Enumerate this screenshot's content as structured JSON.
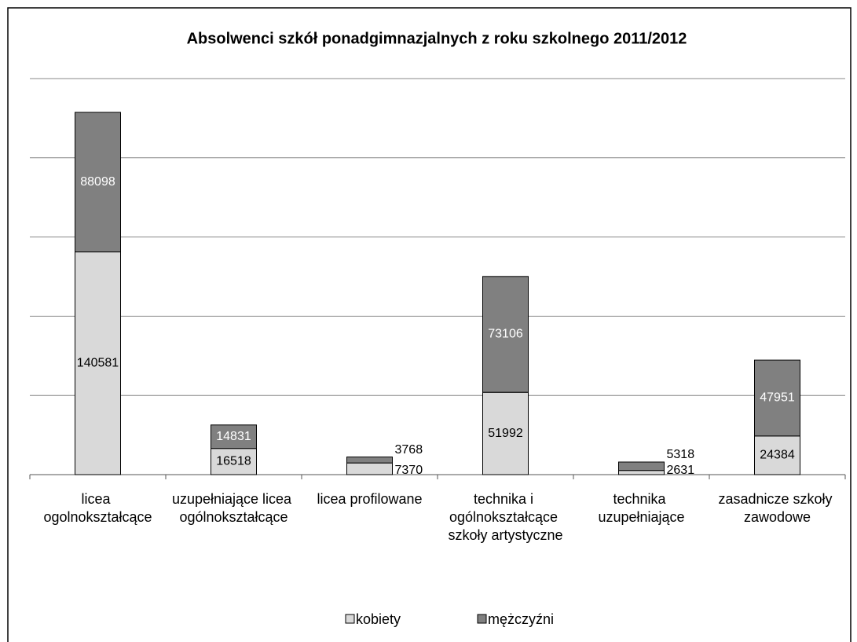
{
  "chart_data": {
    "type": "stacked_bar",
    "title": "Absolwenci szkół ponadgimnazjalnych z roku szkolnego 2011/2012",
    "categories": [
      "licea ogolnokształcące",
      "uzupełniające licea ogólnokształcące",
      "licea profilowane",
      "technika i ogólnokształcące szkoły artystyczne",
      "technika uzupełniające",
      "zasadnicze szkoły zawodowe"
    ],
    "series": [
      {
        "name": "kobiety",
        "color": "#d9d9d9",
        "values": [
          140581,
          16518,
          7370,
          51992,
          2631,
          24384
        ]
      },
      {
        "name": "mężczyźni",
        "color": "#808080",
        "values": [
          88098,
          14831,
          3768,
          73106,
          5318,
          47951
        ]
      }
    ],
    "ylim": [
      0,
      250000
    ],
    "yticks": [
      0,
      50000,
      100000,
      150000,
      200000,
      250000
    ],
    "grid": true,
    "legend": "bottom"
  }
}
